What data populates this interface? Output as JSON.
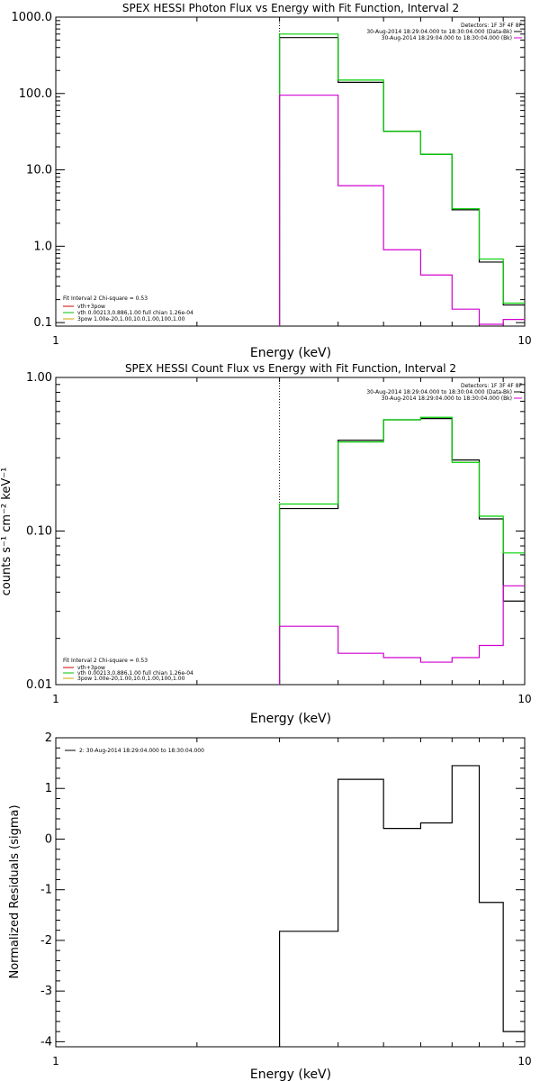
{
  "chart_data": [
    {
      "type": "line",
      "step": true,
      "title": "SPEX HESSI Photon Flux vs Energy with Fit Function, Interval 2",
      "xlabel": "Energy (keV)",
      "ylabel": "",
      "xscale": "log",
      "yscale": "log",
      "xlim": [
        1,
        10
      ],
      "ylim": [
        0.09,
        1000
      ],
      "xticks": [
        "1",
        "10"
      ],
      "yticks": [
        "0.1",
        "1.0",
        "10.0",
        "100.0",
        "1000.0"
      ],
      "legend_header": "Detectors: 1F 3F 4F 8F",
      "legend": [
        {
          "text": "30-Aug-2014 18:29:04.000 to 18:30:04.000 (Data-Bk)",
          "color": "#000000"
        },
        {
          "text": "30-Aug-2014 18:29:04.000 to 18:30:04.000 (Bk)",
          "color": "#d000d0"
        }
      ],
      "fit_text": "Fit Interval 2   Chi-square = 0.53",
      "fit_lines": [
        {
          "text": "vth+3pow",
          "color": "#d00000"
        },
        {
          "text": "vth 0.00213,0.886,1.00  full chian 1.26e-04",
          "color": "#00c000"
        },
        {
          "text": "3pow 1.00e-20,1.00,10.0,1.00,100,1.00",
          "color": "#d0a000"
        }
      ],
      "vline_x": 3,
      "edges": [
        3,
        4,
        5,
        6,
        7,
        8,
        9,
        10
      ],
      "series": [
        {
          "color": "#000000",
          "values": [
            540,
            140,
            32,
            16,
            3.0,
            0.62,
            0.17
          ]
        },
        {
          "color": "#00d000",
          "values": [
            600,
            150,
            32,
            16,
            3.1,
            0.68,
            0.18
          ]
        },
        {
          "color": "#d000d0",
          "values": [
            95,
            6.2,
            0.9,
            0.42,
            0.15,
            0.095,
            0.11
          ]
        }
      ]
    },
    {
      "type": "line",
      "step": true,
      "title": "SPEX HESSI Count Flux vs Energy with Fit Function, Interval 2",
      "xlabel": "Energy (keV)",
      "ylabel": "counts s⁻¹ cm⁻² keV⁻¹",
      "xscale": "log",
      "yscale": "log",
      "xlim": [
        1,
        10
      ],
      "ylim": [
        0.01,
        1
      ],
      "xticks": [
        "1",
        "10"
      ],
      "yticks": [
        "0.01",
        "0.10",
        "1.00"
      ],
      "legend_header": "Detectors: 1F 3F 4F 8F",
      "legend": [
        {
          "text": "30-Aug-2014 18:29:04.000 to 18:30:04.000 (Data-Bk)",
          "color": "#000000"
        },
        {
          "text": "30-Aug-2014 18:29:04.000 to 18:30:04.000 (Bk)",
          "color": "#d000d0"
        }
      ],
      "fit_text": "Fit Interval 2   Chi-square = 0.53",
      "fit_lines": [
        {
          "text": "vth+3pow",
          "color": "#d00000"
        },
        {
          "text": "vth 0.00213,0.886,1.00  full chian 1.26e-04",
          "color": "#00c000"
        },
        {
          "text": "3pow 1.00e-20,1.00,10.0,1.00,100,1.00",
          "color": "#d0a000"
        }
      ],
      "vline_x": 3,
      "edges": [
        3,
        4,
        5,
        6,
        7,
        8,
        9,
        10
      ],
      "series": [
        {
          "color": "#000000",
          "values": [
            0.14,
            0.39,
            0.53,
            0.54,
            0.29,
            0.12,
            0.035
          ]
        },
        {
          "color": "#00d000",
          "values": [
            0.15,
            0.38,
            0.53,
            0.55,
            0.28,
            0.125,
            0.072
          ]
        },
        {
          "color": "#d000d0",
          "values": [
            0.024,
            0.016,
            0.015,
            0.014,
            0.015,
            0.018,
            0.044
          ]
        }
      ]
    },
    {
      "type": "line",
      "step": true,
      "title": "",
      "xlabel": "Energy (keV)",
      "ylabel": "Normalized Residuals (sigma)",
      "xscale": "log",
      "yscale": "linear",
      "xlim": [
        1,
        10
      ],
      "ylim": [
        -4.1,
        2
      ],
      "xticks": [
        "1",
        "10"
      ],
      "yticks": [
        "-4",
        "-3",
        "-2",
        "-1",
        "0",
        "1",
        "2"
      ],
      "legend": [
        {
          "text": "2: 30-Aug-2014 18:29:04.000 to 18:30:04.000",
          "color": "#000000"
        }
      ],
      "edges": [
        3,
        4,
        5,
        6,
        7,
        8,
        9,
        10
      ],
      "series": [
        {
          "color": "#000000",
          "values": [
            -1.82,
            1.18,
            0.21,
            0.32,
            1.45,
            -1.25,
            -3.8
          ]
        }
      ]
    }
  ]
}
